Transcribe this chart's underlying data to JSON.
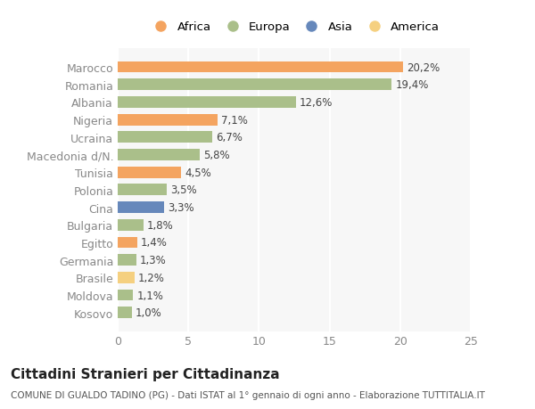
{
  "countries": [
    "Marocco",
    "Romania",
    "Albania",
    "Nigeria",
    "Ucraina",
    "Macedonia d/N.",
    "Tunisia",
    "Polonia",
    "Cina",
    "Bulgaria",
    "Egitto",
    "Germania",
    "Brasile",
    "Moldova",
    "Kosovo"
  ],
  "values": [
    20.2,
    19.4,
    12.6,
    7.1,
    6.7,
    5.8,
    4.5,
    3.5,
    3.3,
    1.8,
    1.4,
    1.3,
    1.2,
    1.1,
    1.0
  ],
  "labels": [
    "20,2%",
    "19,4%",
    "12,6%",
    "7,1%",
    "6,7%",
    "5,8%",
    "4,5%",
    "3,5%",
    "3,3%",
    "1,8%",
    "1,4%",
    "1,3%",
    "1,2%",
    "1,1%",
    "1,0%"
  ],
  "continents": [
    "Africa",
    "Europa",
    "Europa",
    "Africa",
    "Europa",
    "Europa",
    "Africa",
    "Europa",
    "Asia",
    "Europa",
    "Africa",
    "Europa",
    "America",
    "Europa",
    "Europa"
  ],
  "colors": {
    "Africa": "#F4A460",
    "Europa": "#AABF8A",
    "Asia": "#6688BB",
    "America": "#F5D080"
  },
  "legend_order": [
    "Africa",
    "Europa",
    "Asia",
    "America"
  ],
  "legend_colors": {
    "Africa": "#F4A460",
    "Europa": "#AABF8A",
    "Asia": "#6688BB",
    "America": "#F5D080"
  },
  "title": "Cittadini Stranieri per Cittadinanza",
  "subtitle": "COMUNE DI GUALDO TADINO (PG) - Dati ISTAT al 1° gennaio di ogni anno - Elaborazione TUTTITALIA.IT",
  "xlim": [
    0,
    25
  ],
  "xticks": [
    0,
    5,
    10,
    15,
    20,
    25
  ],
  "background_color": "#ffffff",
  "plot_bg_color": "#f7f7f7",
  "grid_color": "#ffffff",
  "title_fontsize": 11,
  "subtitle_fontsize": 7.5,
  "label_fontsize": 8.5,
  "tick_fontsize": 9,
  "legend_fontsize": 9.5
}
